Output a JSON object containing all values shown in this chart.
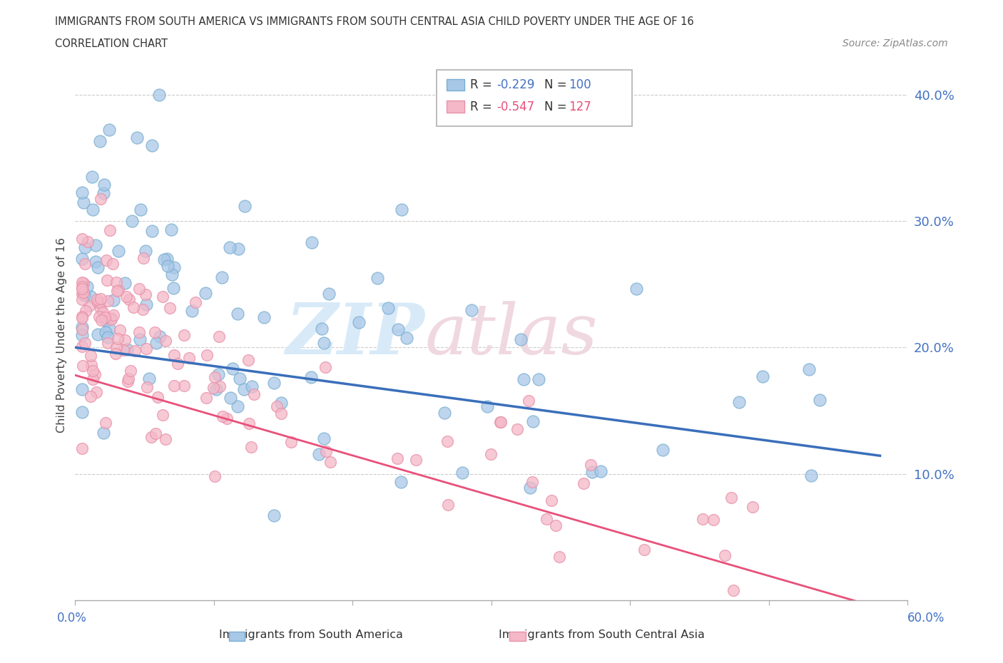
{
  "title_line1": "IMMIGRANTS FROM SOUTH AMERICA VS IMMIGRANTS FROM SOUTH CENTRAL ASIA CHILD POVERTY UNDER THE AGE OF 16",
  "title_line2": "CORRELATION CHART",
  "source": "Source: ZipAtlas.com",
  "ylabel": "Child Poverty Under the Age of 16",
  "xlim": [
    0.0,
    0.6
  ],
  "ylim": [
    0.0,
    0.42
  ],
  "legend_r1": "R = -0.229",
  "legend_n1": "N = 100",
  "legend_r2": "R = -0.547",
  "legend_n2": "N = 127",
  "color_blue": "#a8c8e8",
  "color_blue_edge": "#7aaed0",
  "color_pink": "#f4b8c8",
  "color_pink_edge": "#e890a8",
  "color_blue_line": "#3a6fba",
  "color_pink_line": "#e8507a",
  "color_axis_label": "#4472c4",
  "watermark_color": "#d8eaf8",
  "watermark_color2": "#f0d8e0"
}
